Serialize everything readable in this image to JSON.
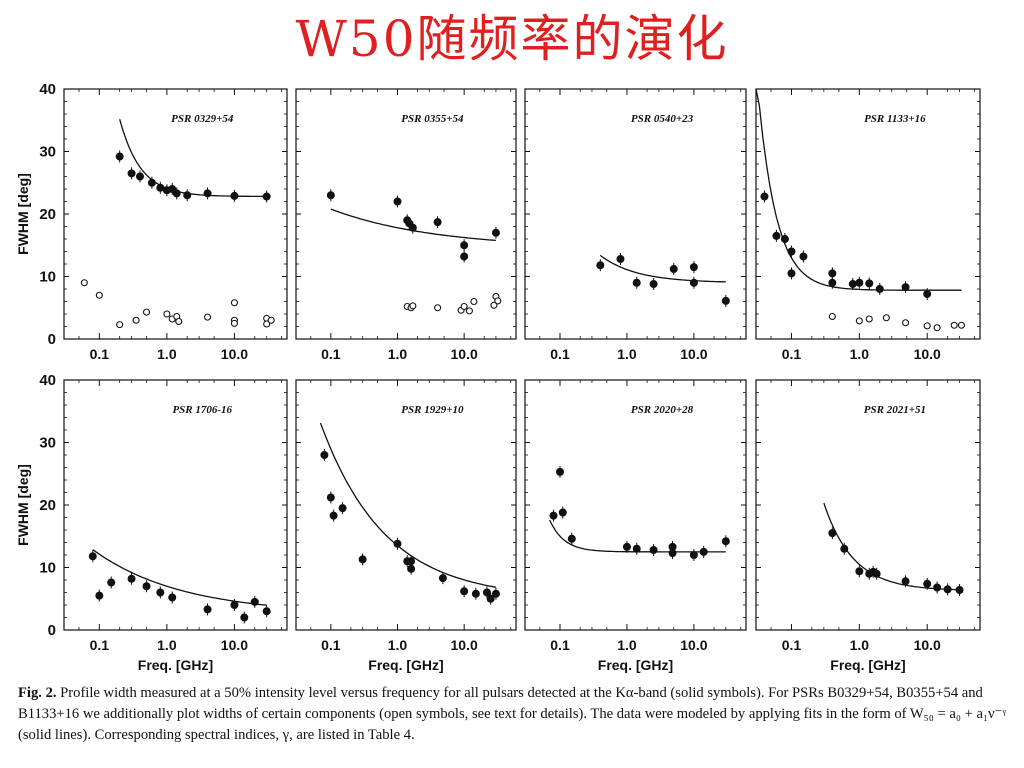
{
  "slide": {
    "title": "W50随频率的演化"
  },
  "caption": {
    "label": "Fig. 2.",
    "text": "Profile width measured at a 50% intensity level versus frequency for all pulsars detected at the Kα-band (solid symbols). For PSRs B0329+54, B0355+54 and B1133+16 we additionally plot widths of certain components (open symbols, see text for details). The data were modeled by applying fits in the form of W₅₀ = a₀ + a₁ν⁻ᵞ (solid lines). Corresponding spectral indices, γ, are listed in Table 4."
  },
  "axes": {
    "ylabel": "FWHM [deg]",
    "xlabel": "Freq. [GHz]",
    "ylim": [
      0,
      40
    ],
    "yticks": [
      "0",
      "10",
      "20",
      "30",
      "40"
    ],
    "xticks": [
      "0.1",
      "1.0",
      "10.0"
    ],
    "xscale": "log",
    "xlim": [
      0.03,
      60
    ]
  },
  "colors": {
    "title": "#e02020",
    "ink": "#111111"
  },
  "chart_data": [
    {
      "type": "scatter",
      "title": "PSR 0329+54",
      "series": [
        {
          "marker": "filled",
          "points": [
            [
              0.2,
              29.2
            ],
            [
              0.3,
              26.5
            ],
            [
              0.4,
              26
            ],
            [
              0.6,
              25
            ],
            [
              0.8,
              24.2
            ],
            [
              1.0,
              23.8
            ],
            [
              1.2,
              24
            ],
            [
              1.4,
              23.3
            ],
            [
              2.0,
              23
            ],
            [
              4.0,
              23.3
            ],
            [
              10,
              22.9
            ],
            [
              30,
              22.8
            ]
          ]
        },
        {
          "marker": "open",
          "points": [
            [
              0.06,
              9
            ],
            [
              0.1,
              7
            ],
            [
              0.2,
              2.3
            ],
            [
              0.35,
              3
            ],
            [
              0.5,
              4.3
            ],
            [
              1.0,
              4
            ],
            [
              1.2,
              3.2
            ],
            [
              1.4,
              3.6
            ],
            [
              1.5,
              2.8
            ],
            [
              4.0,
              3.5
            ],
            [
              10,
              5.8
            ],
            [
              10,
              3
            ],
            [
              10,
              2.5
            ],
            [
              30,
              3.3
            ],
            [
              30,
              2.4
            ],
            [
              35,
              3
            ]
          ]
        }
      ],
      "fit": {
        "a0": 22.8,
        "a1": 1.3,
        "gamma": 1.4,
        "range": [
          0.2,
          30
        ]
      }
    },
    {
      "type": "scatter",
      "title": "PSR 0355+54",
      "series": [
        {
          "marker": "filled",
          "points": [
            [
              0.1,
              23
            ],
            [
              1.0,
              22
            ],
            [
              1.4,
              19
            ],
            [
              1.5,
              18.5
            ],
            [
              1.7,
              17.8
            ],
            [
              4.0,
              18.7
            ],
            [
              10,
              15
            ],
            [
              10,
              13.2
            ],
            [
              30,
              17
            ]
          ]
        },
        {
          "marker": "open",
          "points": [
            [
              1.4,
              5.2
            ],
            [
              1.6,
              5
            ],
            [
              1.7,
              5.3
            ],
            [
              4.0,
              5
            ],
            [
              9,
              4.6
            ],
            [
              10,
              5.2
            ],
            [
              12,
              4.5
            ],
            [
              14,
              6
            ],
            [
              28,
              5.4
            ],
            [
              30,
              6.8
            ],
            [
              32,
              6.1
            ]
          ]
        }
      ],
      "fit": {
        "a0": 14.5,
        "a1": 3.3,
        "gamma": 0.28,
        "range": [
          0.1,
          30
        ]
      }
    },
    {
      "type": "scatter",
      "title": "PSR 0540+23",
      "series": [
        {
          "marker": "filled",
          "points": [
            [
              0.4,
              11.8
            ],
            [
              0.8,
              12.8
            ],
            [
              1.4,
              9
            ],
            [
              2.5,
              8.8
            ],
            [
              5,
              11.2
            ],
            [
              10,
              11.5
            ],
            [
              10,
              9
            ],
            [
              30,
              6.1
            ]
          ]
        }
      ],
      "fit": {
        "a0": 9,
        "a1": 2.1,
        "gamma": 0.8,
        "range": [
          0.4,
          30
        ]
      }
    },
    {
      "type": "scatter",
      "title": "PSR 1133+16",
      "series": [
        {
          "marker": "filled",
          "points": [
            [
              0.04,
              22.8
            ],
            [
              0.06,
              16.5
            ],
            [
              0.08,
              16
            ],
            [
              0.1,
              14
            ],
            [
              0.1,
              10.5
            ],
            [
              0.15,
              13.2
            ],
            [
              0.4,
              10.5
            ],
            [
              0.4,
              9
            ],
            [
              0.8,
              8.8
            ],
            [
              1.0,
              9
            ],
            [
              1.4,
              8.9
            ],
            [
              2.0,
              8
            ],
            [
              4.8,
              8.3
            ],
            [
              10,
              7.2
            ]
          ]
        },
        {
          "marker": "open",
          "points": [
            [
              0.4,
              3.6
            ],
            [
              1.0,
              2.9
            ],
            [
              1.4,
              3.2
            ],
            [
              2.5,
              3.4
            ],
            [
              4.8,
              2.6
            ],
            [
              10,
              2.1
            ],
            [
              14,
              1.8
            ],
            [
              25,
              2.2
            ],
            [
              32,
              2.2
            ]
          ]
        }
      ],
      "fit": {
        "a0": 7.8,
        "a1": 0.13,
        "gamma": 1.6,
        "range": [
          0.03,
          32
        ]
      }
    },
    {
      "type": "scatter",
      "title": "PSR 1706-16",
      "series": [
        {
          "marker": "filled",
          "points": [
            [
              0.08,
              11.8
            ],
            [
              0.1,
              5.5
            ],
            [
              0.15,
              7.6
            ],
            [
              0.3,
              8.2
            ],
            [
              0.5,
              7
            ],
            [
              0.8,
              6
            ],
            [
              1.2,
              5.2
            ],
            [
              4,
              3.3
            ],
            [
              10,
              4
            ],
            [
              14,
              2
            ],
            [
              20,
              4.5
            ],
            [
              30,
              3
            ]
          ]
        }
      ],
      "fit": {
        "a0": 2.5,
        "a1": 4.5,
        "gamma": 0.33,
        "range": [
          0.08,
          30
        ]
      }
    },
    {
      "type": "scatter",
      "title": "PSR 1929+10",
      "series": [
        {
          "marker": "filled",
          "points": [
            [
              0.08,
              28
            ],
            [
              0.1,
              21.2
            ],
            [
              0.11,
              18.3
            ],
            [
              0.15,
              19.5
            ],
            [
              0.3,
              11.3
            ],
            [
              1.0,
              13.8
            ],
            [
              1.4,
              11
            ],
            [
              1.6,
              11
            ],
            [
              1.6,
              9.8
            ],
            [
              4.8,
              8.3
            ],
            [
              10,
              6.2
            ],
            [
              15,
              5.8
            ],
            [
              22,
              6
            ],
            [
              25,
              5
            ],
            [
              30,
              5.8
            ]
          ]
        }
      ],
      "fit": {
        "a0": 5,
        "a1": 8.5,
        "gamma": 0.45,
        "range": [
          0.07,
          30
        ]
      }
    },
    {
      "type": "scatter",
      "title": "PSR 2020+28",
      "series": [
        {
          "marker": "filled",
          "points": [
            [
              0.08,
              18.3
            ],
            [
              0.1,
              25.3
            ],
            [
              0.11,
              18.8
            ],
            [
              0.15,
              14.6
            ],
            [
              1.0,
              13.3
            ],
            [
              1.4,
              13
            ],
            [
              2.5,
              12.8
            ],
            [
              4.8,
              13.3
            ],
            [
              4.8,
              12.3
            ],
            [
              10,
              12
            ],
            [
              14,
              12.5
            ],
            [
              30,
              14.2
            ]
          ]
        }
      ],
      "fit": {
        "a0": 12.5,
        "a1": 0.025,
        "gamma": 2.0,
        "range": [
          0.07,
          30
        ]
      }
    },
    {
      "type": "scatter",
      "title": "PSR 2021+51",
      "series": [
        {
          "marker": "filled",
          "points": [
            [
              0.4,
              15.5
            ],
            [
              0.6,
              13
            ],
            [
              1.0,
              9.4
            ],
            [
              1.4,
              9
            ],
            [
              1.6,
              9.3
            ],
            [
              1.8,
              9
            ],
            [
              4.8,
              7.8
            ],
            [
              10,
              7.4
            ],
            [
              14,
              6.8
            ],
            [
              20,
              6.5
            ],
            [
              30,
              6.4
            ]
          ]
        }
      ],
      "fit": {
        "a0": 6.3,
        "a1": 4.2,
        "gamma": 1.0,
        "range": [
          0.3,
          30
        ]
      }
    }
  ]
}
